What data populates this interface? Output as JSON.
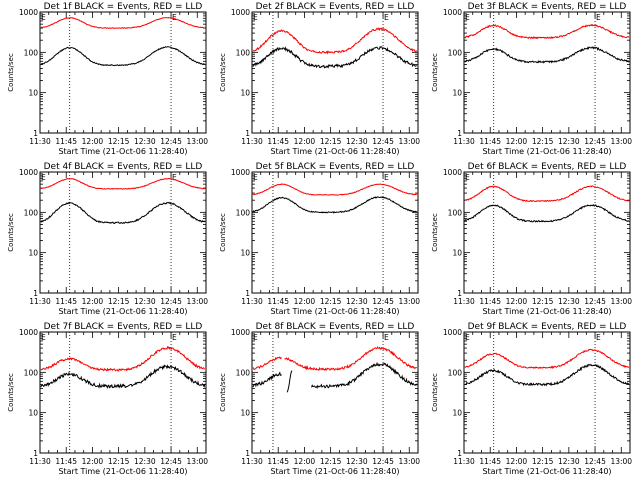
{
  "chart_data": {
    "type": "line",
    "scale": "log",
    "ylim": [
      1,
      1000
    ],
    "xlim": [
      "11:30",
      "13:05"
    ],
    "y_ticks": [
      "1",
      "10",
      "100",
      "1000"
    ],
    "x_ticks": [
      "11:30",
      "11:45",
      "12:00",
      "12:15",
      "12:30",
      "12:45",
      "13:00"
    ],
    "xlabel": "Start Time (21-Oct-06 11:28:40)",
    "ylabel": "Counts/sec",
    "marker_letter": "E",
    "colors": {
      "events": "#000000",
      "lld": "#ff0000"
    },
    "panels": [
      {
        "title": "Det 1f BLACK = Events, RED = LLD",
        "events": {
          "base": 48,
          "peak1": 130,
          "peak2": 135,
          "noise": 0.03
        },
        "lld": {
          "base": 400,
          "peak1": 720,
          "peak2": 720,
          "noise": 0.02
        },
        "markers": [
          "11:47",
          "12:45"
        ]
      },
      {
        "title": "Det 2f BLACK = Events, RED = LLD",
        "events": {
          "base": 45,
          "peak1": 125,
          "peak2": 130,
          "noise": 0.08
        },
        "lld": {
          "base": 100,
          "peak1": 340,
          "peak2": 380,
          "noise": 0.05
        },
        "markers": [
          "11:42",
          "12:45"
        ]
      },
      {
        "title": "Det 3f BLACK = Events, RED = LLD",
        "events": {
          "base": 58,
          "peak1": 120,
          "peak2": 130,
          "noise": 0.05
        },
        "lld": {
          "base": 230,
          "peak1": 460,
          "peak2": 470,
          "noise": 0.04
        },
        "markers": [
          "11:47",
          "12:45"
        ]
      },
      {
        "title": "Det 4f BLACK = Events, RED = LLD",
        "events": {
          "base": 55,
          "peak1": 170,
          "peak2": 170,
          "noise": 0.04
        },
        "lld": {
          "base": 380,
          "peak1": 680,
          "peak2": 680,
          "noise": 0.02
        },
        "markers": [
          "11:47",
          "12:45"
        ]
      },
      {
        "title": "Det 5f BLACK = Events, RED = LLD",
        "events": {
          "base": 100,
          "peak1": 230,
          "peak2": 240,
          "noise": 0.03
        },
        "lld": {
          "base": 270,
          "peak1": 500,
          "peak2": 500,
          "noise": 0.02
        },
        "markers": [
          "11:42",
          "12:45"
        ]
      },
      {
        "title": "Det 6f BLACK = Events, RED = LLD",
        "events": {
          "base": 60,
          "peak1": 150,
          "peak2": 150,
          "noise": 0.04
        },
        "lld": {
          "base": 190,
          "peak1": 440,
          "peak2": 440,
          "noise": 0.03
        },
        "markers": [
          "11:47",
          "12:45"
        ]
      },
      {
        "title": "Det 7f BLACK = Events, RED = LLD",
        "events": {
          "base": 45,
          "peak1": 90,
          "peak2": 140,
          "noise": 0.09
        },
        "lld": {
          "base": 115,
          "peak1": 220,
          "peak2": 400,
          "noise": 0.06
        },
        "markers": [
          "11:47",
          "12:45"
        ]
      },
      {
        "title": "Det 8f BLACK = Events, RED = LLD",
        "events": {
          "base": 45,
          "peak1": 90,
          "peak2": 160,
          "noise": 0.09
        },
        "lld": {
          "base": 120,
          "peak1": 230,
          "peak2": 400,
          "noise": 0.06
        },
        "markers": [
          "11:42",
          "12:45"
        ],
        "gap": [
          "11:47",
          "12:04"
        ],
        "spike": [
          "11:50",
          "11:53"
        ]
      },
      {
        "title": "Det 9f BLACK = Events, RED = LLD",
        "events": {
          "base": 50,
          "peak1": 110,
          "peak2": 150,
          "noise": 0.06
        },
        "lld": {
          "base": 130,
          "peak1": 290,
          "peak2": 360,
          "noise": 0.04
        },
        "markers": [
          "11:47",
          "12:45"
        ]
      }
    ]
  }
}
